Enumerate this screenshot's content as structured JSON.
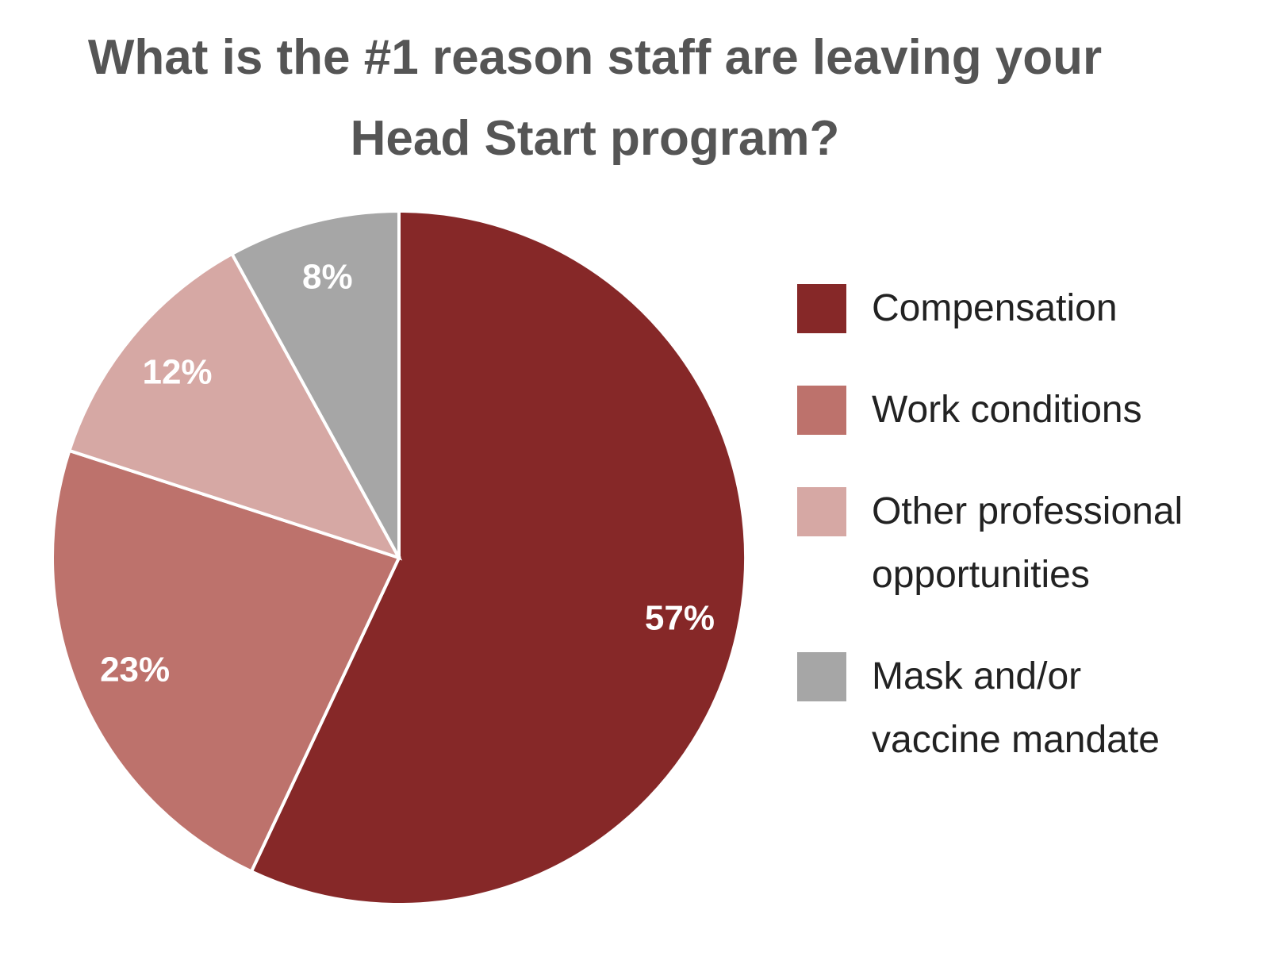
{
  "chart_data": {
    "type": "pie",
    "title": "What is the #1 reason staff are leaving your Head Start program?",
    "categories": [
      "Compensation",
      "Work conditions",
      "Other professional opportunities",
      "Mask and/or vaccine mandate"
    ],
    "values": [
      57,
      23,
      12,
      8
    ],
    "value_labels": [
      "57%",
      "23%",
      "12%",
      "8%"
    ],
    "colors": [
      "#862828",
      "#bd726c",
      "#d6a8a4",
      "#a6a6a6"
    ],
    "legend": "right"
  }
}
